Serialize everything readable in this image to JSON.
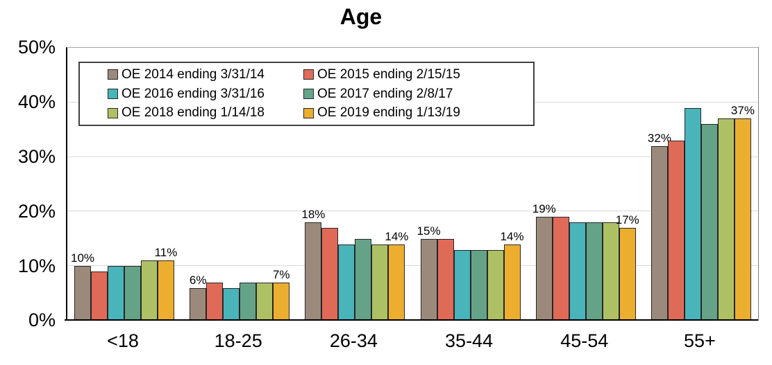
{
  "chart_data": {
    "type": "bar",
    "title": "Age",
    "categories": [
      "<18",
      "18-25",
      "26-34",
      "35-44",
      "45-54",
      "55+"
    ],
    "series": [
      {
        "name": "OE 2014 ending 3/31/14",
        "color": "#9b8a7b",
        "values": [
          10,
          6,
          18,
          15,
          19,
          32
        ]
      },
      {
        "name": "OE 2015 ending 2/15/15",
        "color": "#e06a58",
        "values": [
          9,
          7,
          17,
          15,
          19,
          33
        ]
      },
      {
        "name": "OE 2016 ending 3/31/16",
        "color": "#49b4ba",
        "values": [
          10,
          6,
          14,
          13,
          18,
          39
        ]
      },
      {
        "name": "OE 2017 ending 2/8/17",
        "color": "#64a388",
        "values": [
          10,
          7,
          15,
          13,
          18,
          36
        ]
      },
      {
        "name": "OE 2018 ending 1/14/18",
        "color": "#adc164",
        "values": [
          11,
          7,
          14,
          13,
          18,
          37
        ]
      },
      {
        "name": "OE 2019 ending 1/13/19",
        "color": "#ebae2f",
        "values": [
          11,
          7,
          14,
          14,
          17,
          37
        ]
      }
    ],
    "data_labels": {
      "first_series": [
        "10%",
        "6%",
        "18%",
        "15%",
        "19%",
        "32%"
      ],
      "last_series": [
        "11%",
        "7%",
        "14%",
        "14%",
        "17%",
        "37%"
      ]
    },
    "ylabel": "",
    "xlabel": "",
    "ylim": [
      0,
      50
    ],
    "y_ticks": [
      "50%",
      "40%",
      "30%",
      "20%",
      "10%",
      "0%"
    ],
    "grid": true,
    "legend_position": "inside-top-left",
    "colors": {
      "gridline": "#d9d9d9",
      "axis": "#000000",
      "bar_outline": "#262626",
      "legend_border": "#404040",
      "background": "#ffffff"
    }
  }
}
